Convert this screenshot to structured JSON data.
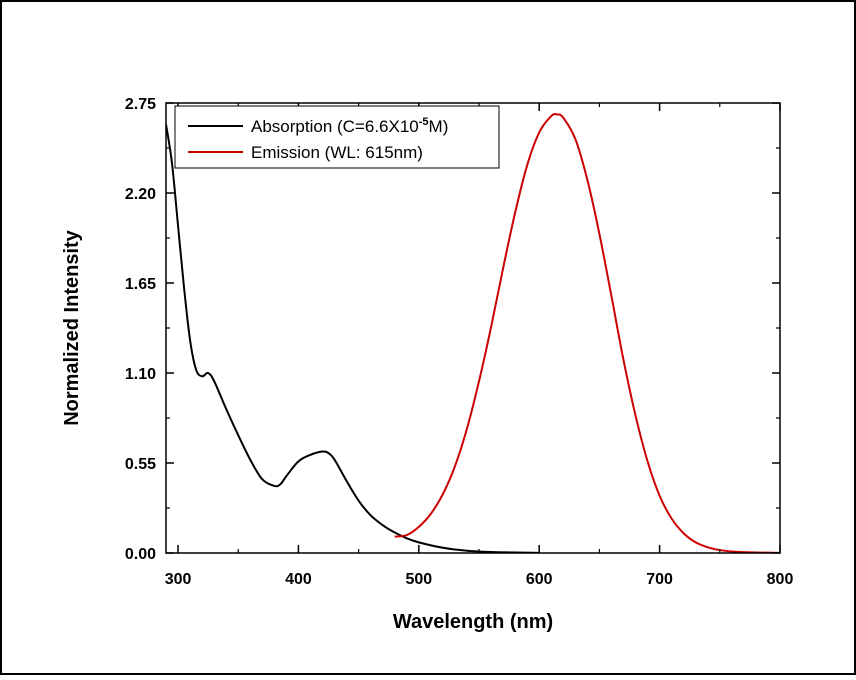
{
  "chart_data": {
    "type": "line",
    "xlabel": "Wavelength (nm)",
    "ylabel": "Normalized Intensity",
    "xlim": [
      290,
      800
    ],
    "ylim": [
      0,
      2.75
    ],
    "x_ticks": [
      300,
      400,
      500,
      600,
      700,
      800
    ],
    "x_tick_labels": [
      "300",
      "400",
      "500",
      "600",
      "700",
      "800"
    ],
    "y_ticks": [
      0,
      0.55,
      1.1,
      1.65,
      2.2,
      2.75
    ],
    "y_tick_labels": [
      "0.00",
      "0.55",
      "1.10",
      "1.65",
      "2.20",
      "2.75"
    ],
    "grid": false,
    "legend_position": "top-left",
    "legend": {
      "absorption": {
        "prefix": "Absorption (C=6.6X10",
        "sup": "-5",
        "suffix": "M)"
      },
      "emission": "Emission (WL: 615nm)"
    },
    "series": [
      {
        "name": "Absorption (C=6.6X10-5M)",
        "color": "#000000",
        "x": [
          290,
          295,
          300,
          305,
          310,
          315,
          320,
          325,
          330,
          340,
          350,
          360,
          370,
          380,
          385,
          390,
          400,
          410,
          420,
          425,
          430,
          440,
          450,
          460,
          470,
          480,
          490,
          500,
          520,
          540,
          560,
          580,
          600
        ],
        "y": [
          2.62,
          2.38,
          2.0,
          1.62,
          1.3,
          1.12,
          1.08,
          1.1,
          1.05,
          0.88,
          0.72,
          0.57,
          0.45,
          0.41,
          0.42,
          0.47,
          0.56,
          0.6,
          0.62,
          0.61,
          0.57,
          0.44,
          0.32,
          0.23,
          0.17,
          0.125,
          0.09,
          0.065,
          0.032,
          0.014,
          0.006,
          0.003,
          0.001
        ]
      },
      {
        "name": "Emission (WL: 615nm)",
        "color": "#cc0000",
        "x": [
          480,
          490,
          500,
          510,
          520,
          530,
          540,
          550,
          560,
          570,
          580,
          590,
          600,
          610,
          615,
          620,
          630,
          640,
          650,
          660,
          670,
          680,
          690,
          700,
          710,
          720,
          730,
          740,
          750,
          760,
          770,
          780,
          790,
          800
        ],
        "y": [
          0.1,
          0.11,
          0.16,
          0.24,
          0.36,
          0.53,
          0.76,
          1.05,
          1.38,
          1.74,
          2.08,
          2.37,
          2.57,
          2.67,
          2.68,
          2.66,
          2.53,
          2.28,
          1.95,
          1.57,
          1.18,
          0.84,
          0.56,
          0.35,
          0.21,
          0.12,
          0.065,
          0.035,
          0.018,
          0.009,
          0.005,
          0.003,
          0.002,
          0.001
        ]
      }
    ]
  }
}
